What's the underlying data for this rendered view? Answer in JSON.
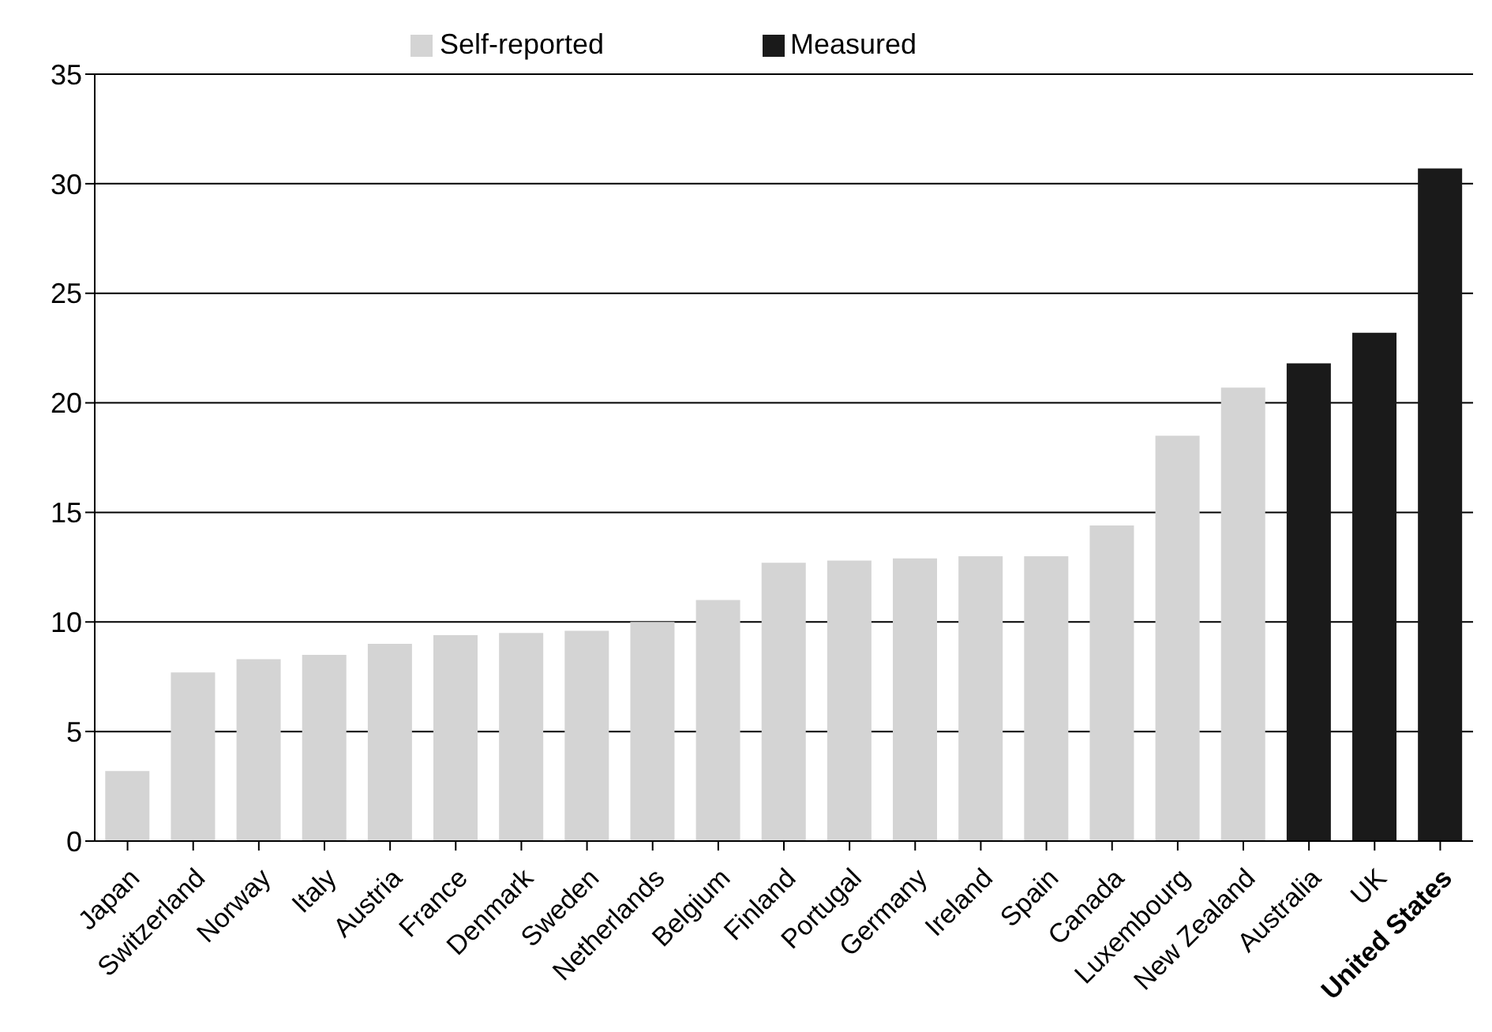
{
  "chart_data": {
    "type": "bar",
    "stacked": true,
    "categories": [
      "Japan",
      "Switzerland",
      "Norway",
      "Italy",
      "Austria",
      "France",
      "Denmark",
      "Sweden",
      "Netherlands",
      "Belgium",
      "Finland",
      "Portugal",
      "Germany",
      "Ireland",
      "Spain",
      "Canada",
      "Luxembourg",
      "New Zealand",
      "Australia",
      "UK",
      "United States"
    ],
    "series": [
      {
        "name": "Self-reported",
        "color": "#d4d4d4",
        "values": [
          3.2,
          7.7,
          8.3,
          8.5,
          9.0,
          9.4,
          9.5,
          9.6,
          10.0,
          11.0,
          12.7,
          12.8,
          12.9,
          13.0,
          13.0,
          14.4,
          18.5,
          20.7,
          null,
          null,
          null
        ]
      },
      {
        "name": "Measured",
        "color": "#1a1a1a",
        "values": [
          null,
          null,
          null,
          null,
          null,
          null,
          null,
          null,
          null,
          null,
          null,
          null,
          null,
          null,
          null,
          null,
          null,
          null,
          21.8,
          23.2,
          30.7
        ]
      }
    ],
    "ylim": [
      0,
      35
    ],
    "yticks": [
      0,
      5,
      10,
      15,
      20,
      25,
      30,
      35
    ],
    "grid": "y",
    "legend": "top"
  }
}
